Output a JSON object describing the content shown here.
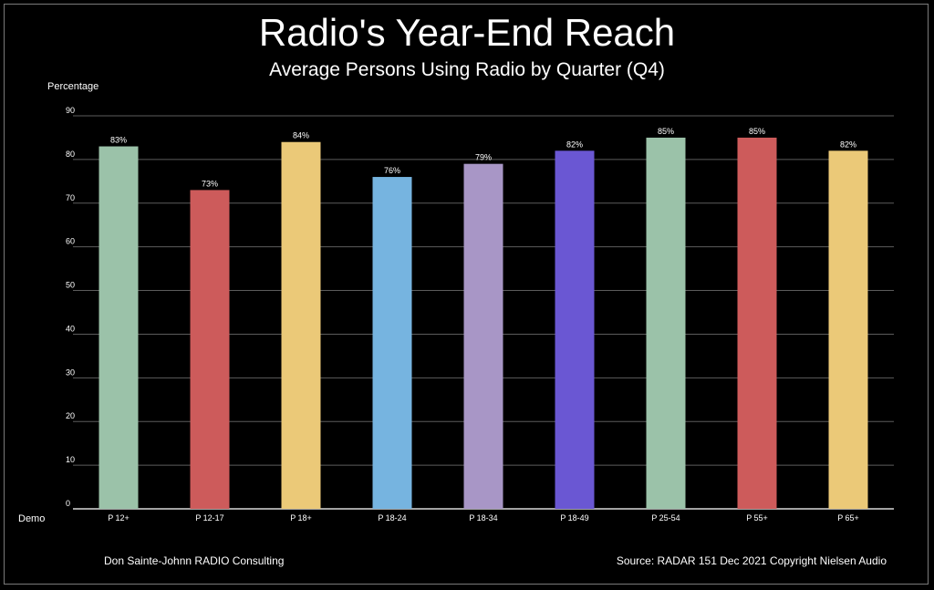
{
  "title": "Radio's Year-End Reach",
  "subtitle": "Average Persons Using Radio by Quarter (Q4)",
  "footer": {
    "left": "Don Sainte-Johnn RADIO Consulting",
    "right": "Source: RADAR 151 Dec 2021 Copyright Nielsen Audio"
  },
  "chart_data": {
    "type": "bar",
    "ylabel": "Percentage",
    "xlabel": "Demo",
    "ylim": [
      0,
      90
    ],
    "yticks": [
      0,
      10,
      20,
      30,
      40,
      50,
      60,
      70,
      80,
      90
    ],
    "grid": true,
    "categories": [
      "P 12+",
      "P 12-17",
      "P 18+",
      "P 18-24",
      "P 18-34",
      "P 18-49",
      "P 25-54",
      "P 55+",
      "P 65+"
    ],
    "values": [
      83,
      73,
      84,
      76,
      79,
      82,
      85,
      85,
      82
    ],
    "data_labels": [
      "83%",
      "73%",
      "84%",
      "76%",
      "79%",
      "82%",
      "85%",
      "85%",
      "82%"
    ],
    "colors": [
      "#9bc2a9",
      "#cd5b5b",
      "#ebc978",
      "#76b4e0",
      "#a896c6",
      "#6a57d3",
      "#9bc2a9",
      "#cd5b5b",
      "#ebc978"
    ]
  }
}
